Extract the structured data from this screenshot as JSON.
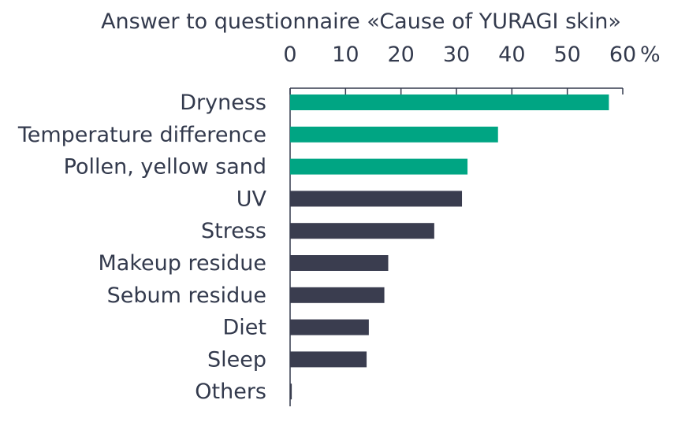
{
  "chart_data": {
    "type": "bar",
    "orientation": "horizontal",
    "title": "Answer to questionnaire «Cause of YURAGI skin»",
    "xlabel": "",
    "ylabel": "",
    "unit": "%",
    "xlim": [
      0,
      60
    ],
    "ticks": [
      "0",
      "10",
      "20",
      "30",
      "40",
      "50",
      "60"
    ],
    "categories": [
      "Dryness",
      "Temperature difference",
      "Pollen, yellow sand",
      "UV",
      "Stress",
      "Makeup residue",
      "Sebum residue",
      "Diet",
      "Sleep",
      "Others"
    ],
    "values": [
      57.5,
      37.5,
      32,
      31,
      26,
      17.7,
      17,
      14.2,
      13.8,
      0.3
    ],
    "highlight_count": 3,
    "grid": false,
    "colors": {
      "highlight": "#00a583",
      "default": "#3a3d4f",
      "text": "#333a4d",
      "axis": "#333a4d"
    }
  }
}
